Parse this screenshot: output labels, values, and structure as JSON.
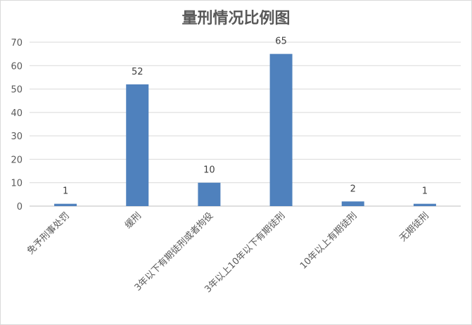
{
  "chart_data": {
    "type": "bar",
    "title": "量刑情况比例图",
    "categories": [
      "免予刑事处罚",
      "缓刑",
      "3年以下有期徒刑或者拘役",
      "3年以上10年以下有期徒刑",
      "10年以上有期徒刑",
      "无期徒刑"
    ],
    "values": [
      1,
      52,
      10,
      65,
      2,
      1
    ],
    "ylim": [
      0,
      70
    ],
    "yticks": [
      0,
      10,
      20,
      30,
      40,
      50,
      60,
      70
    ],
    "grid": true,
    "bar_color": "#4f81bd"
  }
}
